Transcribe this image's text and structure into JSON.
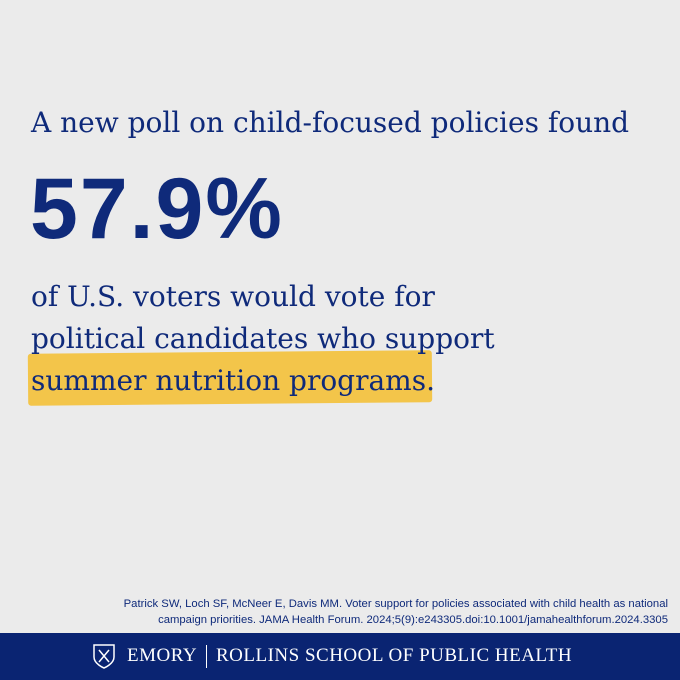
{
  "intro": "A new poll on child-focused policies found",
  "stat": "57.9%",
  "body": [
    "of U.S. voters would vote for",
    "political candidates who support",
    "summer nutrition programs."
  ],
  "citation": [
    "Patrick SW, Loch SF, McNeer E, Davis MM. Voter support for policies associated with child health as national",
    "campaign priorities. JAMA Health Forum. 2024;5(9):e243305.doi:10.1001/jamahealthforum.2024.3305"
  ],
  "footer": {
    "left": "EMORY",
    "right": "ROLLINS SCHOOL OF PUBLIC HEALTH"
  }
}
